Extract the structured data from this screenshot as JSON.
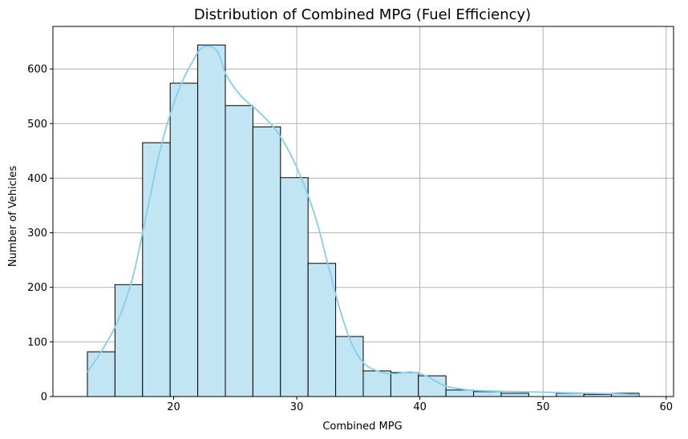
{
  "chart_data": {
    "type": "bar",
    "title": "Distribution of Combined MPG (Fuel Efficiency)",
    "xlabel": "Combined MPG",
    "ylabel": "Number of Vehicles",
    "xlim": [
      10.2,
      60.6
    ],
    "ylim": [
      0,
      678
    ],
    "xticks": [
      20,
      30,
      40,
      50,
      60
    ],
    "yticks": [
      0,
      100,
      200,
      300,
      400,
      500,
      600
    ],
    "grid": true,
    "colors": {
      "bar_fill": "#c2e5f4",
      "bar_edge": "#000000",
      "kde_line": "#87ceeb",
      "grid": "#b0b0b0"
    },
    "bins": [
      {
        "x0": 13.0,
        "x1": 15.24,
        "count": 82
      },
      {
        "x0": 15.24,
        "x1": 17.48,
        "count": 205
      },
      {
        "x0": 17.48,
        "x1": 19.72,
        "count": 465
      },
      {
        "x0": 19.72,
        "x1": 21.96,
        "count": 574
      },
      {
        "x0": 21.96,
        "x1": 24.2,
        "count": 644
      },
      {
        "x0": 24.2,
        "x1": 26.44,
        "count": 533
      },
      {
        "x0": 26.44,
        "x1": 28.68,
        "count": 494
      },
      {
        "x0": 28.68,
        "x1": 30.92,
        "count": 401
      },
      {
        "x0": 30.92,
        "x1": 33.16,
        "count": 244
      },
      {
        "x0": 33.16,
        "x1": 35.4,
        "count": 110
      },
      {
        "x0": 35.4,
        "x1": 37.64,
        "count": 47
      },
      {
        "x0": 37.64,
        "x1": 39.88,
        "count": 44
      },
      {
        "x0": 39.88,
        "x1": 42.12,
        "count": 38
      },
      {
        "x0": 42.12,
        "x1": 44.36,
        "count": 12
      },
      {
        "x0": 44.36,
        "x1": 46.6,
        "count": 9
      },
      {
        "x0": 46.6,
        "x1": 48.84,
        "count": 6
      },
      {
        "x0": 48.84,
        "x1": 51.08,
        "count": 0
      },
      {
        "x0": 51.08,
        "x1": 53.32,
        "count": 6
      },
      {
        "x0": 53.32,
        "x1": 55.56,
        "count": 4
      },
      {
        "x0": 55.56,
        "x1": 57.8,
        "count": 6
      }
    ],
    "kde": [
      {
        "x": 13.0,
        "y": 45
      },
      {
        "x": 14.2,
        "y": 85
      },
      {
        "x": 15.5,
        "y": 140
      },
      {
        "x": 16.7,
        "y": 220
      },
      {
        "x": 17.8,
        "y": 335
      },
      {
        "x": 19.0,
        "y": 460
      },
      {
        "x": 20.3,
        "y": 555
      },
      {
        "x": 21.5,
        "y": 612
      },
      {
        "x": 22.4,
        "y": 640
      },
      {
        "x": 23.5,
        "y": 634
      },
      {
        "x": 24.3,
        "y": 588
      },
      {
        "x": 25.5,
        "y": 550
      },
      {
        "x": 27.0,
        "y": 520
      },
      {
        "x": 28.5,
        "y": 482
      },
      {
        "x": 30.0,
        "y": 420
      },
      {
        "x": 31.5,
        "y": 330
      },
      {
        "x": 32.5,
        "y": 245
      },
      {
        "x": 33.5,
        "y": 160
      },
      {
        "x": 34.5,
        "y": 95
      },
      {
        "x": 35.5,
        "y": 60
      },
      {
        "x": 36.8,
        "y": 45
      },
      {
        "x": 38.0,
        "y": 42
      },
      {
        "x": 39.3,
        "y": 45
      },
      {
        "x": 40.5,
        "y": 38
      },
      {
        "x": 42.0,
        "y": 20
      },
      {
        "x": 44.0,
        "y": 12
      },
      {
        "x": 46.0,
        "y": 10
      },
      {
        "x": 48.0,
        "y": 9
      },
      {
        "x": 50.0,
        "y": 8
      },
      {
        "x": 52.0,
        "y": 7
      },
      {
        "x": 54.0,
        "y": 6
      },
      {
        "x": 56.0,
        "y": 5
      },
      {
        "x": 57.8,
        "y": 3
      }
    ]
  }
}
